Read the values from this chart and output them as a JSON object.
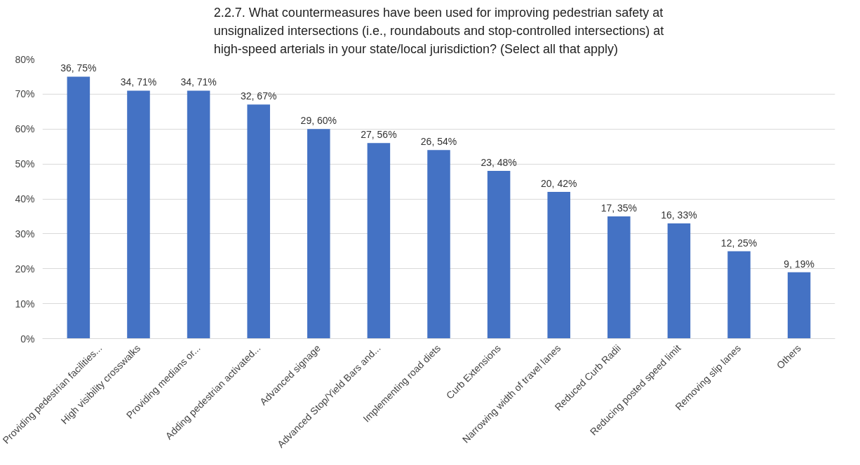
{
  "chart_data": {
    "type": "bar",
    "title": "2.2.7. What countermeasures have been used for improving pedestrian safety at unsignalized intersections (i.e., roundabouts and stop-controlled intersections) at high-speed arterials in your state/local jurisdiction? (Select all that apply)",
    "categories": [
      "Providing pedestrian facilities...",
      "High visibility crosswalks",
      "Providing medians or...",
      "Adding pedestrian activated...",
      "Advanced signage",
      "Advanced Stop/Yield Bars and...",
      "Implementing road diets",
      "Curb Extensions",
      "Narrowing width of travel lanes",
      "Reduced Curb Radii",
      "Reducing posted speed limit",
      "Removing slip lanes",
      "Others"
    ],
    "values": [
      75,
      71,
      71,
      67,
      60,
      56,
      54,
      48,
      42,
      35,
      33,
      25,
      19
    ],
    "value_labels": [
      "36, 75%",
      "34, 71%",
      "34, 71%",
      "32, 67%",
      "29, 60%",
      "27, 56%",
      "26, 54%",
      "23, 48%",
      "20, 42%",
      "17, 35%",
      "16, 33%",
      "12, 25%",
      "9, 19%"
    ],
    "color": "#4472c4",
    "ylim": [
      0,
      80
    ],
    "yticks": [
      {
        "value": 0,
        "label": "0%"
      },
      {
        "value": 10,
        "label": "10%"
      },
      {
        "value": 20,
        "label": "20%"
      },
      {
        "value": 30,
        "label": "30%"
      },
      {
        "value": 40,
        "label": "40%"
      },
      {
        "value": 50,
        "label": "50%"
      },
      {
        "value": 60,
        "label": "60%"
      },
      {
        "value": 70,
        "label": "70%"
      },
      {
        "value": 80,
        "label": "80%"
      }
    ],
    "grid": "y"
  }
}
